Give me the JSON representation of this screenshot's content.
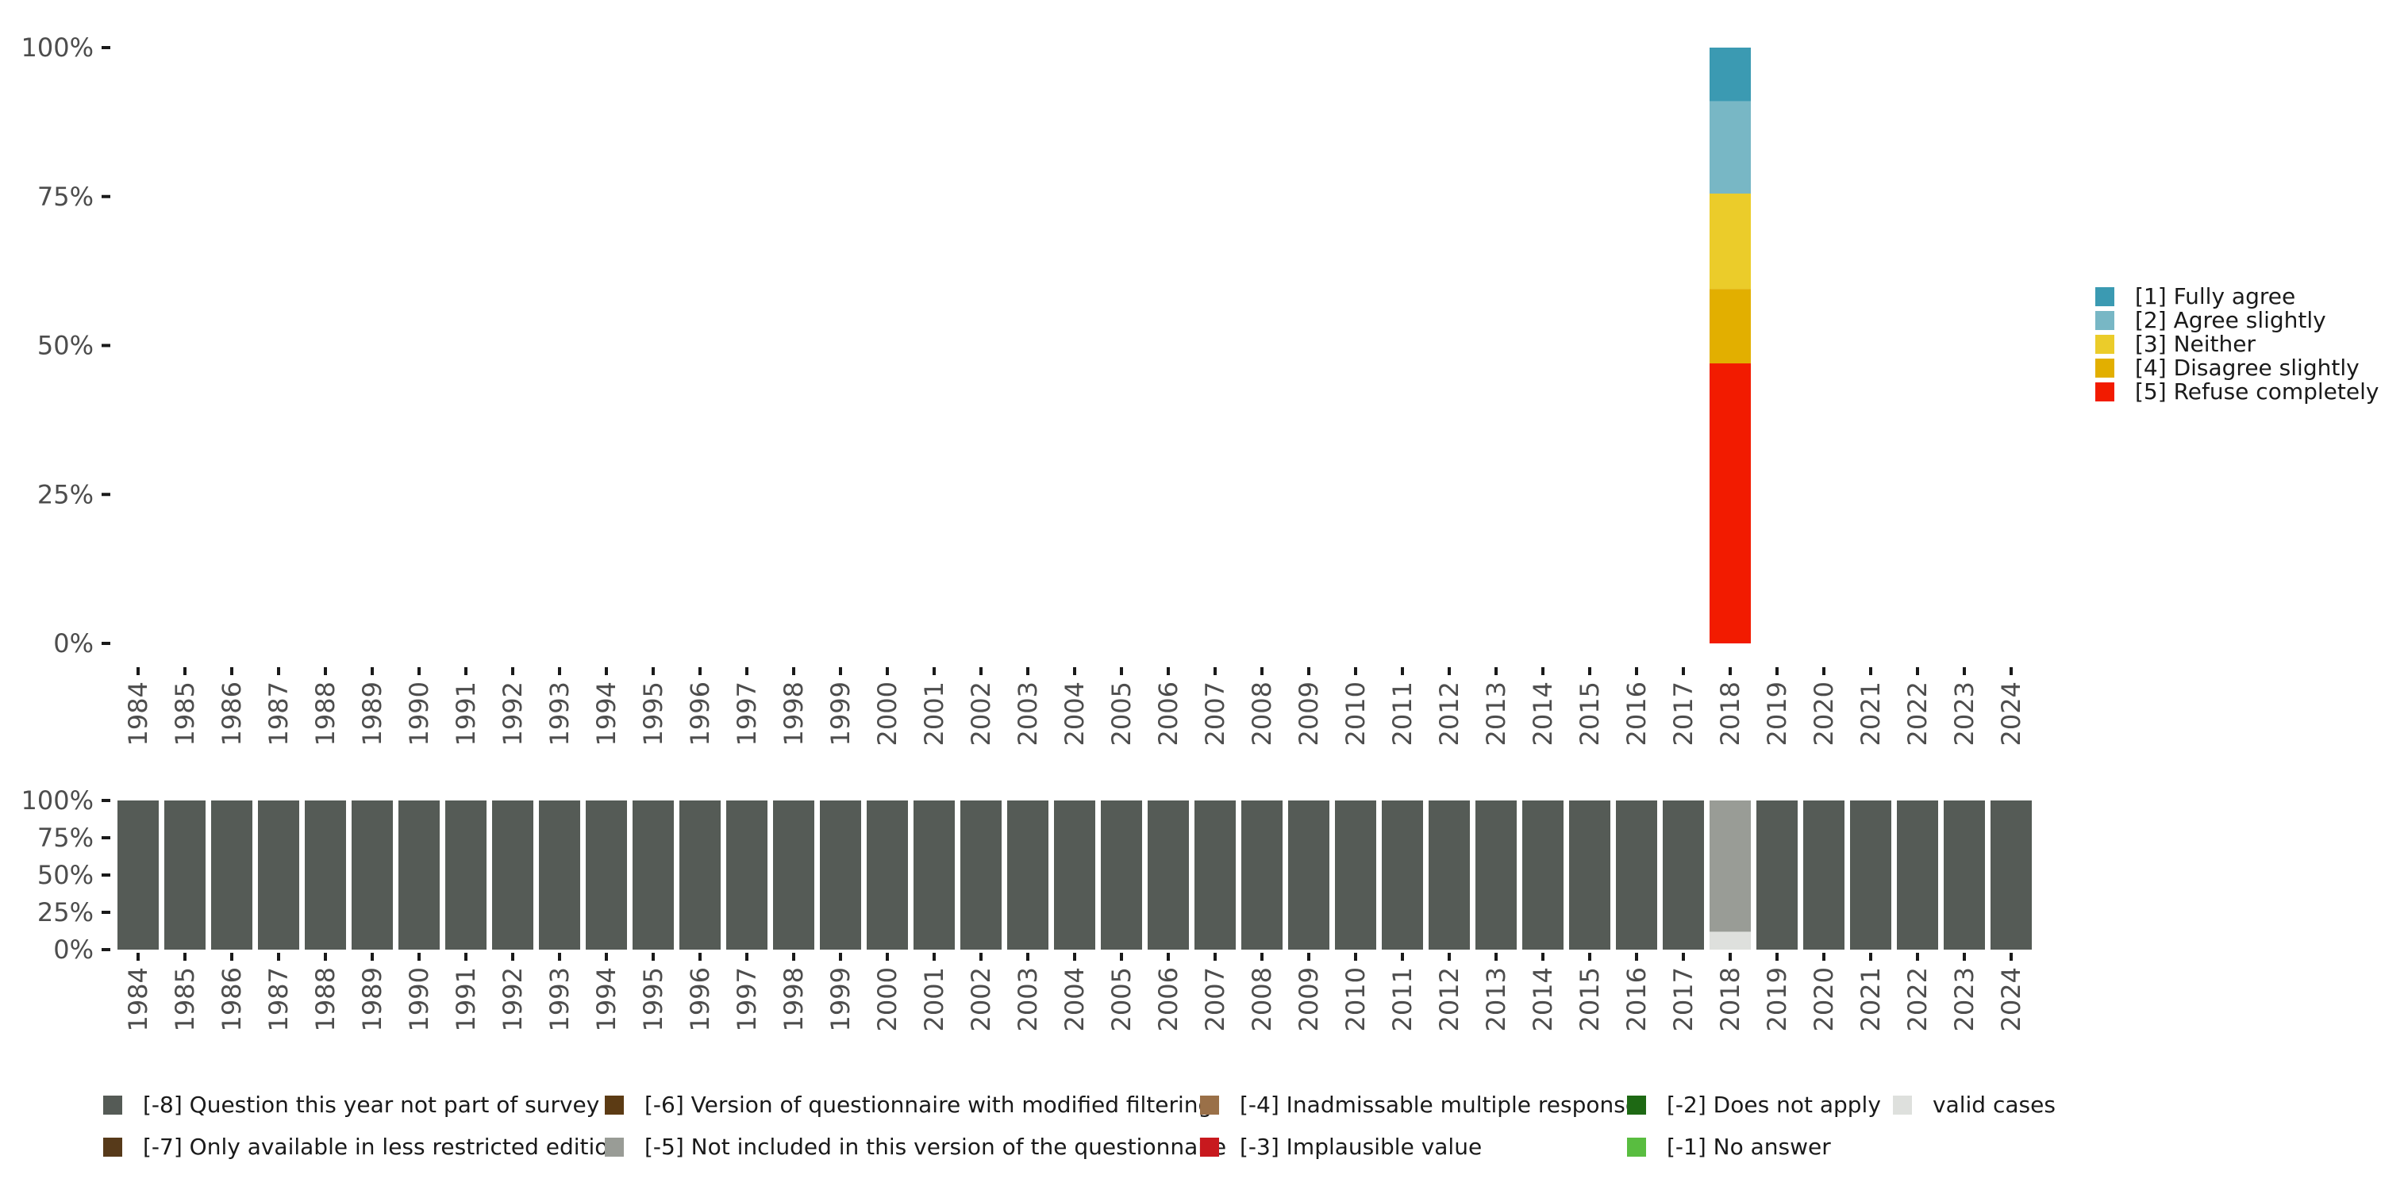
{
  "chart_data": [
    {
      "type": "bar",
      "stacked": true,
      "title": "",
      "xlabel": "",
      "ylabel": "",
      "ylim": [
        0,
        100
      ],
      "y_ticks": [
        "0%",
        "25%",
        "50%",
        "75%",
        "100%"
      ],
      "categories": [
        "1984",
        "1985",
        "1986",
        "1987",
        "1988",
        "1989",
        "1990",
        "1991",
        "1992",
        "1993",
        "1994",
        "1995",
        "1996",
        "1997",
        "1998",
        "1999",
        "2000",
        "2001",
        "2002",
        "2003",
        "2004",
        "2005",
        "2006",
        "2007",
        "2008",
        "2009",
        "2010",
        "2011",
        "2012",
        "2013",
        "2014",
        "2015",
        "2016",
        "2017",
        "2018",
        "2019",
        "2020",
        "2021",
        "2022",
        "2023",
        "2024"
      ],
      "legend_position": "right",
      "series": [
        {
          "name": "[5] Refuse completely",
          "color": "#f21b00",
          "values": {
            "2018": 47.0
          }
        },
        {
          "name": "[4] Disagree slightly",
          "color": "#e2af00",
          "values": {
            "2018": 12.5
          }
        },
        {
          "name": "[3] Neither",
          "color": "#ebcc2a",
          "values": {
            "2018": 16.0
          }
        },
        {
          "name": "[2] Agree slightly",
          "color": "#78b7c5",
          "values": {
            "2018": 15.5
          }
        },
        {
          "name": "[1] Fully agree",
          "color": "#3b9ab2",
          "values": {
            "2018": 9.0
          }
        }
      ],
      "legend_order": [
        "[1] Fully agree",
        "[2] Agree slightly",
        "[3] Neither",
        "[4] Disagree slightly",
        "[5] Refuse completely"
      ]
    },
    {
      "type": "bar",
      "stacked": true,
      "title": "",
      "xlabel": "",
      "ylabel": "",
      "ylim": [
        0,
        100
      ],
      "y_ticks": [
        "0%",
        "25%",
        "50%",
        "75%",
        "100%"
      ],
      "categories": [
        "1984",
        "1985",
        "1986",
        "1987",
        "1988",
        "1989",
        "1990",
        "1991",
        "1992",
        "1993",
        "1994",
        "1995",
        "1996",
        "1997",
        "1998",
        "1999",
        "2000",
        "2001",
        "2002",
        "2003",
        "2004",
        "2005",
        "2006",
        "2007",
        "2008",
        "2009",
        "2010",
        "2011",
        "2012",
        "2013",
        "2014",
        "2015",
        "2016",
        "2017",
        "2018",
        "2019",
        "2020",
        "2021",
        "2022",
        "2023",
        "2024"
      ],
      "legend_position": "bottom",
      "series": [
        {
          "name": "valid cases",
          "color": "#dee0dd",
          "values": {
            "2018": 12.0
          }
        },
        {
          "name": "[-5] Not included in this version of the questionnaire",
          "color": "#999c96",
          "values": {
            "2018": 88.0
          }
        },
        {
          "name": "[-8] Question this year not part of survey",
          "color": "#555b56",
          "values": {
            "1984": 100,
            "1985": 100,
            "1986": 100,
            "1987": 100,
            "1988": 100,
            "1989": 100,
            "1990": 100,
            "1991": 100,
            "1992": 100,
            "1993": 100,
            "1994": 100,
            "1995": 100,
            "1996": 100,
            "1997": 100,
            "1998": 100,
            "1999": 100,
            "2000": 100,
            "2001": 100,
            "2002": 100,
            "2003": 100,
            "2004": 100,
            "2005": 100,
            "2006": 100,
            "2007": 100,
            "2008": 100,
            "2009": 100,
            "2010": 100,
            "2011": 100,
            "2012": 100,
            "2013": 100,
            "2014": 100,
            "2015": 100,
            "2016": 100,
            "2017": 100,
            "2019": 100,
            "2020": 100,
            "2021": 100,
            "2022": 100,
            "2023": 100,
            "2024": 100
          }
        }
      ],
      "legend_items": [
        {
          "name": "[-8] Question this year not part of survey",
          "color": "#555b56"
        },
        {
          "name": "[-7] Only available in less restricted edition",
          "color": "#573a1a"
        },
        {
          "name": "[-6] Version of questionnaire with modified filtering",
          "color": "#5c3b14"
        },
        {
          "name": "[-5] Not included in this version of the questionnaire",
          "color": "#999c96"
        },
        {
          "name": "[-4] Inadmissable multiple response",
          "color": "#9a7048"
        },
        {
          "name": "[-3] Implausible value",
          "color": "#c8191e"
        },
        {
          "name": "[-2] Does not apply",
          "color": "#1e6914"
        },
        {
          "name": "[-1] No answer",
          "color": "#59bd40"
        },
        {
          "name": "valid cases",
          "color": "#dee0dd"
        }
      ]
    }
  ]
}
